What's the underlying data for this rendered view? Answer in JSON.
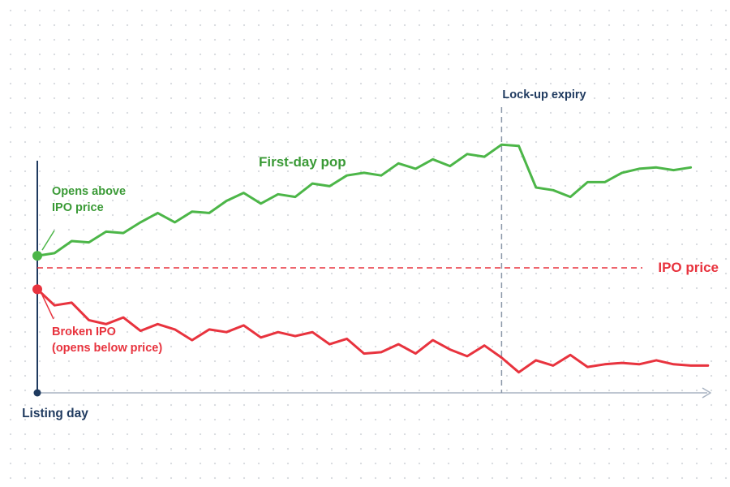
{
  "chart_data": {
    "type": "line",
    "title": "",
    "xlabel": "",
    "ylabel": "",
    "x_axis_label": "Listing day",
    "reference_line": {
      "label": "IPO price",
      "y": 0,
      "style": "dashed"
    },
    "vertical_marker": {
      "label": "Lock-up expiry",
      "x": 27
    },
    "x": [
      0,
      1,
      2,
      3,
      4,
      5,
      6,
      7,
      8,
      9,
      10,
      11,
      12,
      13,
      14,
      15,
      16,
      17,
      18,
      19,
      20,
      21,
      22,
      23,
      24,
      25,
      26,
      27,
      28,
      29,
      30,
      31,
      32,
      33,
      34,
      35,
      36,
      37,
      38,
      39
    ],
    "ylim": [
      -44,
      48
    ],
    "grid": false,
    "series": [
      {
        "name": "First-day pop",
        "color": "#4cb648",
        "annotation": "Opens above IPO price",
        "values": [
          4.5,
          5.5,
          10,
          9.5,
          13.5,
          13,
          17,
          20.5,
          17,
          21,
          20.5,
          25,
          28,
          24,
          27.5,
          26.5,
          31.5,
          30.5,
          34.5,
          35.5,
          34.5,
          39,
          37,
          40.5,
          38,
          42.5,
          41.5,
          46,
          45.5,
          30,
          29,
          26.5,
          32,
          32,
          35.5,
          37,
          37.5,
          36.5,
          37.5,
          null
        ]
      },
      {
        "name": "Broken IPO",
        "color": "#e8333e",
        "annotation": "Broken IPO\n(opens below price)",
        "values": [
          -8,
          -14,
          -13,
          -19.5,
          -21,
          -18.5,
          -23.5,
          -21,
          -23,
          -27,
          -23,
          -24,
          -21.5,
          -26,
          -24,
          -25.5,
          -24,
          -28.5,
          -26.5,
          -32,
          -31.5,
          -28.5,
          -32,
          -27,
          -30.5,
          -33,
          -29,
          -33.5,
          -39,
          -34.5,
          -36.5,
          -32.5,
          -37,
          -36,
          -35.5,
          -36,
          -34.5,
          -36,
          -36.5,
          -36.5
        ]
      }
    ]
  }
}
